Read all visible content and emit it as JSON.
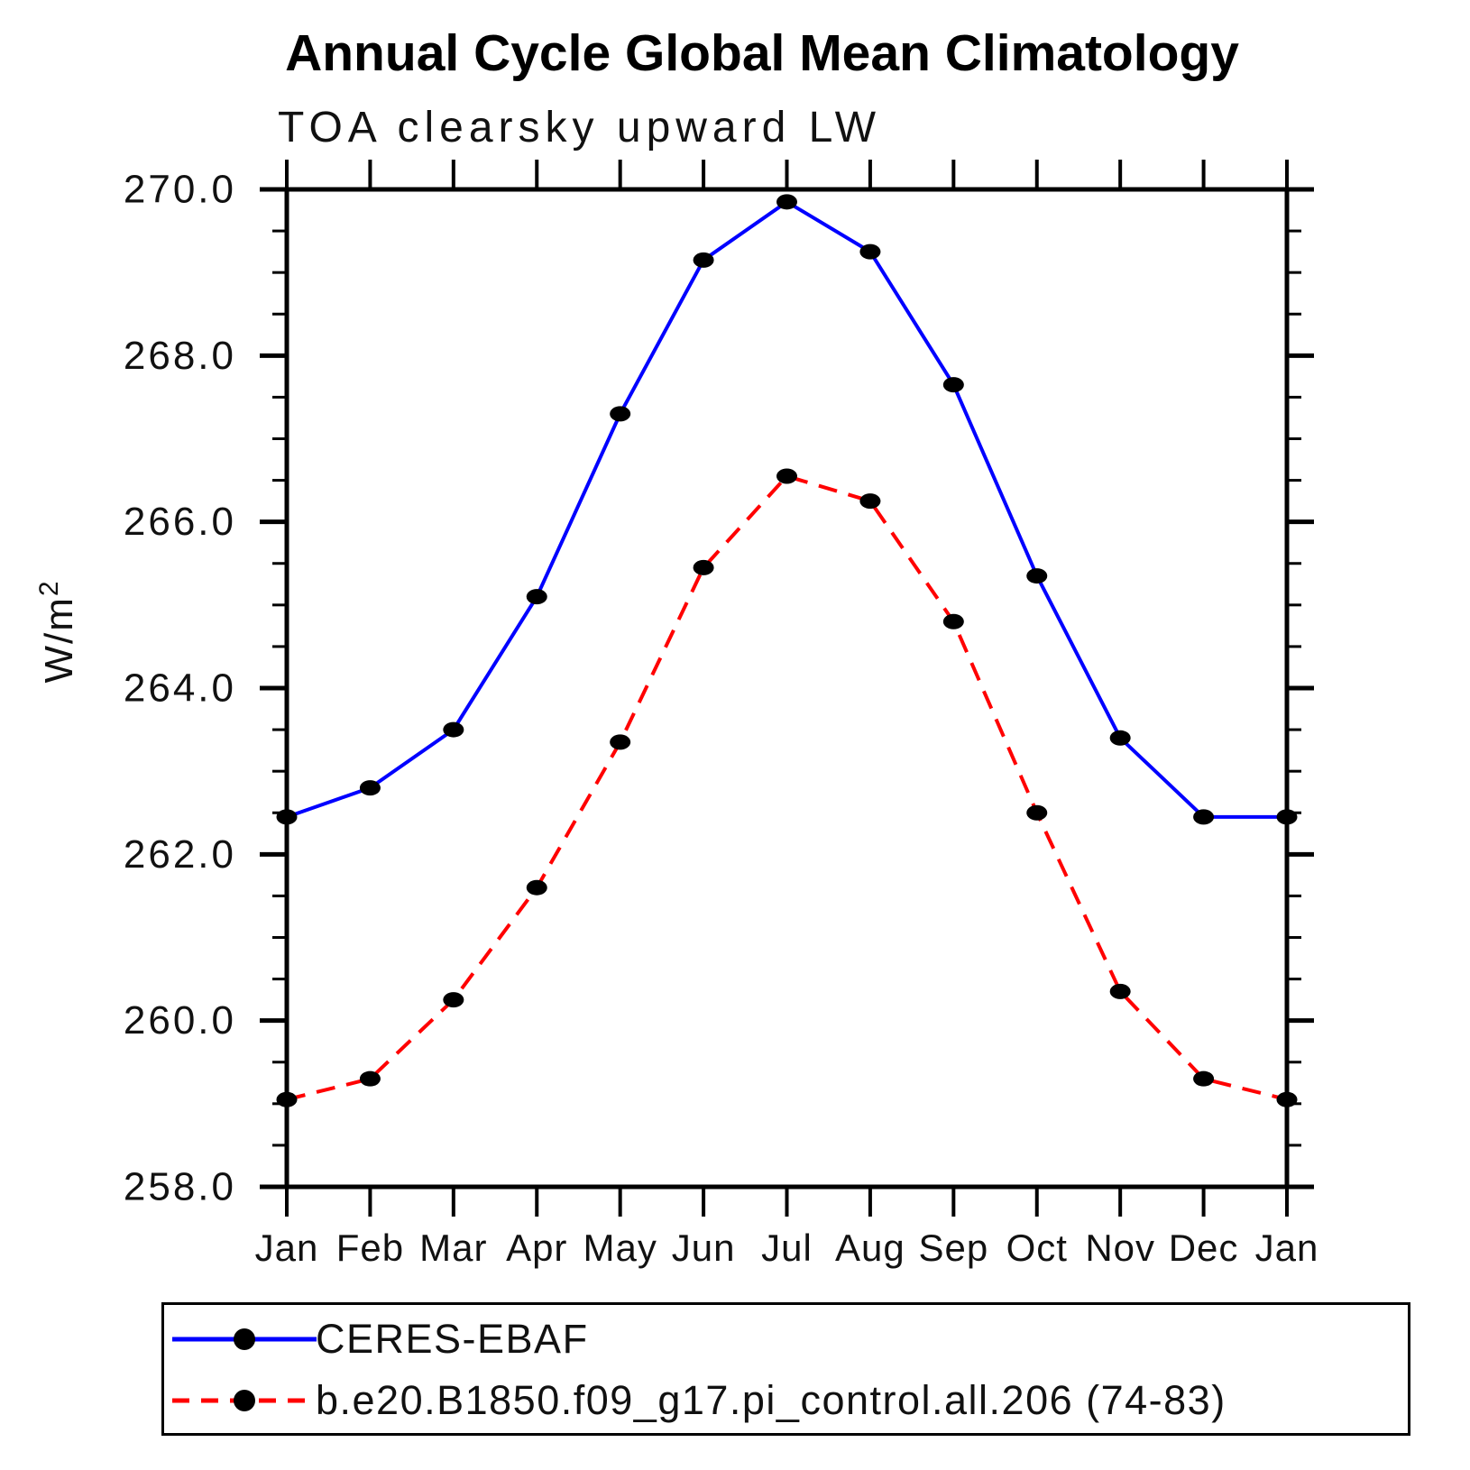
{
  "chart_data": {
    "type": "line",
    "title": "Annual Cycle Global Mean Climatology",
    "subtitle": "TOA clearsky upward LW",
    "xlabel": "",
    "ylabel": "W/m²",
    "ylabel_base": "W/m",
    "ylabel_exponent": "2",
    "categories": [
      "Jan",
      "Feb",
      "Mar",
      "Apr",
      "May",
      "Jun",
      "Jul",
      "Aug",
      "Sep",
      "Oct",
      "Nov",
      "Dec",
      "Jan"
    ],
    "ylim": [
      258.0,
      270.0
    ],
    "ytick_major_step": 2.0,
    "ytick_minor_step": 0.5,
    "ytick_labels": [
      "258.0",
      "260.0",
      "262.0",
      "264.0",
      "266.0",
      "268.0",
      "270.0"
    ],
    "grid": false,
    "legend_position": "bottom-left",
    "axis_color": "#000000",
    "marker_shape": "filled-circle",
    "series": [
      {
        "name": "CERES-EBAF",
        "color": "#0000ff",
        "line_style": "solid",
        "marker_color": "#000000",
        "values": [
          262.45,
          262.8,
          263.5,
          265.1,
          267.3,
          269.15,
          269.85,
          269.25,
          267.65,
          265.35,
          263.4,
          262.45,
          262.45
        ]
      },
      {
        "name": "b.e20.B1850.f09_g17.pi_control.all.206 (74-83)",
        "color": "#ff0000",
        "line_style": "dashed",
        "marker_color": "#000000",
        "values": [
          259.05,
          259.3,
          260.25,
          261.6,
          263.35,
          265.45,
          266.55,
          266.25,
          264.8,
          262.5,
          260.35,
          259.3,
          259.05
        ]
      }
    ]
  },
  "legend": {
    "items": [
      {
        "label": "CERES-EBAF",
        "color": "#0000ff",
        "line_style": "solid",
        "marker_color": "#000000"
      },
      {
        "label": "b.e20.B1850.f09_g17.pi_control.all.206 (74-83)",
        "color": "#ff0000",
        "line_style": "dashed",
        "marker_color": "#000000"
      }
    ]
  }
}
